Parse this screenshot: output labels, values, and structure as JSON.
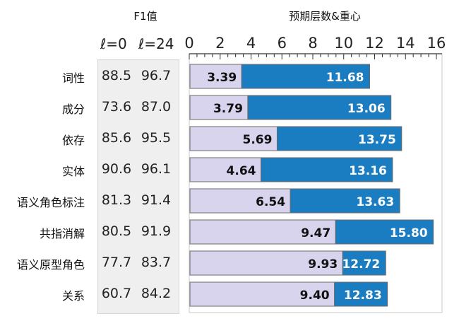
{
  "headers": {
    "f1": "F1值",
    "chart": "预期层数&重心",
    "col_l0": "ℓ=0",
    "col_l24": "ℓ=24"
  },
  "colors": {
    "centroid_bar": "#d9d4ee",
    "expected_bar": "#1a7cc1",
    "bar_border": "#6d6d6d",
    "panel_bg": "#efefef"
  },
  "rows": [
    {
      "label": "词性",
      "f1_l0": "88.5",
      "f1_l24": "96.7"
    },
    {
      "label": "成分",
      "f1_l0": "73.6",
      "f1_l24": "87.0"
    },
    {
      "label": "依存",
      "f1_l0": "85.6",
      "f1_l24": "95.5"
    },
    {
      "label": "实体",
      "f1_l0": "90.6",
      "f1_l24": "96.1"
    },
    {
      "label": "语义角色标注",
      "f1_l0": "81.3",
      "f1_l24": "91.4"
    },
    {
      "label": "共指消解",
      "f1_l0": "80.5",
      "f1_l24": "91.9"
    },
    {
      "label": "语义原型角色",
      "f1_l0": "77.7",
      "f1_l24": "83.7"
    },
    {
      "label": "关系",
      "f1_l0": "60.7",
      "f1_l24": "84.2"
    }
  ],
  "chart_data": {
    "type": "bar",
    "categories": [
      "词性",
      "成分",
      "依存",
      "实体",
      "语义角色标注",
      "共指消解",
      "语义原型角色",
      "关系"
    ],
    "series": [
      {
        "values": [
          3.39,
          3.79,
          5.69,
          4.64,
          6.54,
          9.47,
          9.93,
          9.4
        ]
      },
      {
        "values": [
          11.68,
          13.06,
          13.75,
          13.16,
          13.63,
          15.8,
          12.72,
          12.83
        ]
      }
    ],
    "x_ticks": [
      "0",
      "2",
      "4",
      "6",
      "8",
      "10",
      "12",
      "14",
      "16"
    ],
    "xlim": [
      0,
      16
    ],
    "orientation": "horizontal",
    "grid": false
  }
}
